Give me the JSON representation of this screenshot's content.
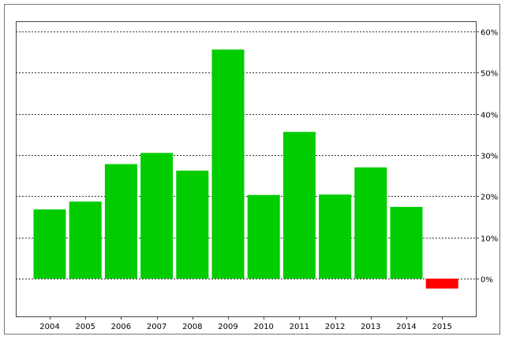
{
  "chart_data": {
    "type": "bar",
    "categories": [
      "2004",
      "2005",
      "2006",
      "2007",
      "2008",
      "2009",
      "2010",
      "2011",
      "2012",
      "2013",
      "2014",
      "2015"
    ],
    "values": [
      16.8,
      18.7,
      27.8,
      30.5,
      26.2,
      55.6,
      20.3,
      35.6,
      20.4,
      27.0,
      17.4,
      -2.4
    ],
    "ylim": [
      -7,
      63
    ],
    "yticks": [
      0,
      10,
      20,
      30,
      40,
      50,
      60
    ],
    "ytick_labels": [
      "0%",
      "10%",
      "20%",
      "30%",
      "40%",
      "50%",
      "60%"
    ],
    "y_axis_side": "right",
    "grid": true,
    "grid_style": "dotted horizontal",
    "legend": "none",
    "title": "",
    "xlabel": "",
    "ylabel": "",
    "colors": {
      "positive": "#00cc00",
      "negative": "#ff0000",
      "frame": "#777777",
      "grid": "#333333"
    }
  }
}
